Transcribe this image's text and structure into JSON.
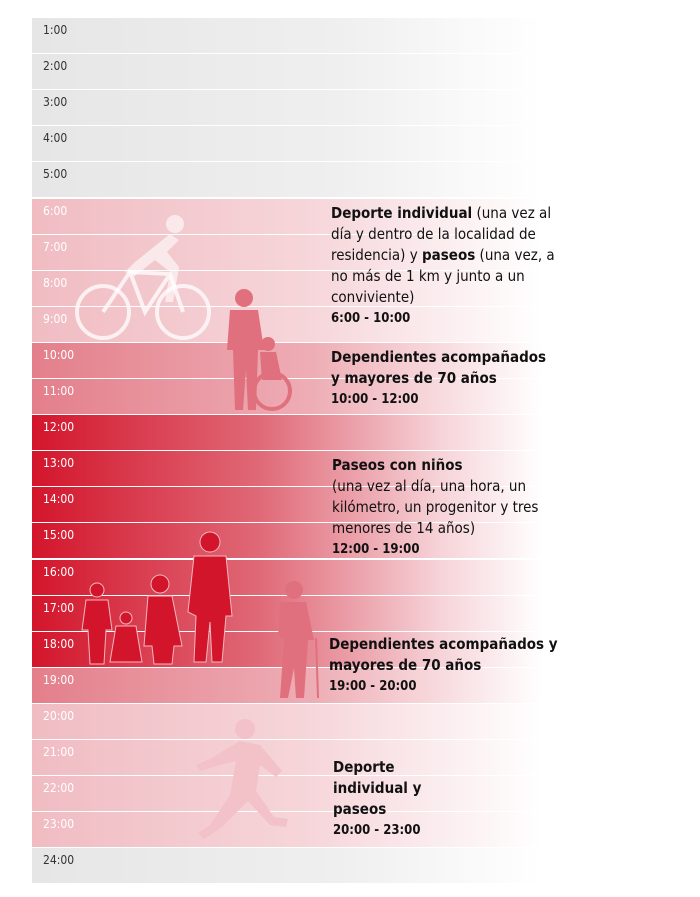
{
  "hours": [
    {
      "label": "1:00",
      "tone": "gray"
    },
    {
      "label": "2:00",
      "tone": "gray"
    },
    {
      "label": "3:00",
      "tone": "gray"
    },
    {
      "label": "4:00",
      "tone": "gray"
    },
    {
      "label": "5:00",
      "tone": "gray"
    },
    {
      "label": "6:00",
      "tone": "p1"
    },
    {
      "label": "7:00",
      "tone": "p1"
    },
    {
      "label": "8:00",
      "tone": "p1"
    },
    {
      "label": "9:00",
      "tone": "p1"
    },
    {
      "label": "10:00",
      "tone": "p2"
    },
    {
      "label": "11:00",
      "tone": "p2"
    },
    {
      "label": "12:00",
      "tone": "p3"
    },
    {
      "label": "13:00",
      "tone": "p3"
    },
    {
      "label": "14:00",
      "tone": "p3"
    },
    {
      "label": "15:00",
      "tone": "p3"
    },
    {
      "label": "16:00",
      "tone": "p3"
    },
    {
      "label": "17:00",
      "tone": "p3"
    },
    {
      "label": "18:00",
      "tone": "p3"
    },
    {
      "label": "19:00",
      "tone": "p2"
    },
    {
      "label": "20:00",
      "tone": "p1"
    },
    {
      "label": "21:00",
      "tone": "p1"
    },
    {
      "label": "22:00",
      "tone": "p1"
    },
    {
      "label": "23:00",
      "tone": "p1"
    },
    {
      "label": "24:00",
      "tone": "gray"
    }
  ],
  "blocks": {
    "b1": {
      "bold1": "Deporte individual",
      "text1": " (una vez al día y dentro de la localidad de residencia) y ",
      "bold2": "paseos",
      "text2": " (una vez, a no más de 1 km y junto a un conviviente)",
      "time": "6:00 - 10:00"
    },
    "b2": {
      "title": "Dependientes acompañados y mayores de 70 años",
      "time": "10:00 - 12:00"
    },
    "b3": {
      "title": "Paseos con niños",
      "text": "(una vez al día, una hora, un kilómetro, un progenitor y tres menores de 14 años)",
      "time": "12:00 - 19:00"
    },
    "b4": {
      "title": "Dependientes acompañados y mayores de 70 años",
      "time": "19:00 - 20:00"
    },
    "b5": {
      "title": "Deporte individual y paseos",
      "time": "20:00 - 23:00"
    }
  },
  "colors": {
    "strong": "#d3152b",
    "medium": "#e37f8b",
    "light": "#f0bcc2",
    "neutral": "#e6e6e6"
  }
}
